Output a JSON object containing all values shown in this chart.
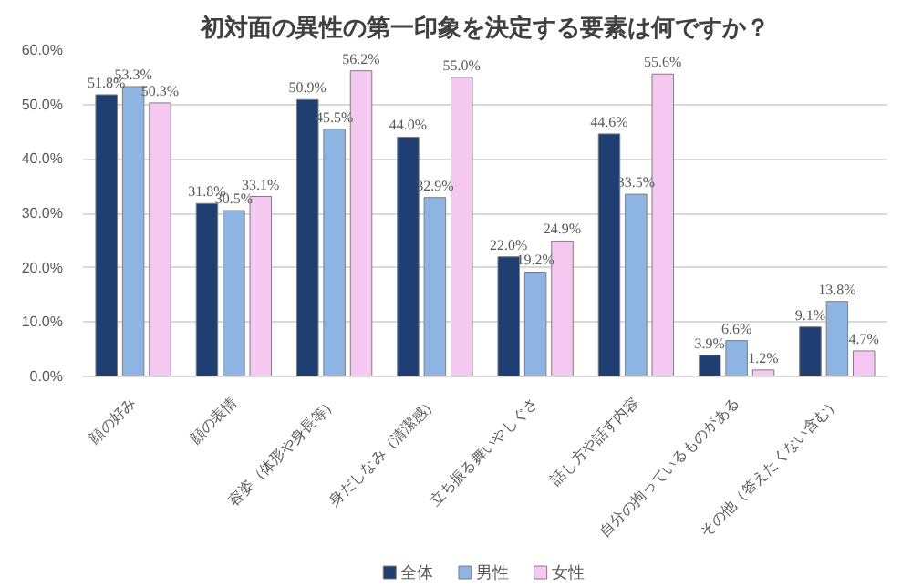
{
  "chart_data": {
    "type": "bar",
    "title": "初対面の異性の第一印象を決定する要素は何ですか？",
    "categories": [
      "顔の好み",
      "顔の表情",
      "容姿（体形や身長等）",
      "身だしなみ（清潔感）",
      "立ち振る舞いやしぐさ",
      "話し方や話す内容",
      "自分の拘っているものがある",
      "その他（答えたくない含む）"
    ],
    "series": [
      {
        "name": "全体",
        "color": "#1f3f73",
        "values": [
          51.8,
          31.8,
          50.9,
          44.0,
          22.0,
          44.6,
          3.9,
          9.1
        ],
        "value_labels": [
          "51.8%",
          "31.8%",
          "50.9%",
          "44.0%",
          "22.0%",
          "44.6%",
          "3.9%",
          "9.1%"
        ]
      },
      {
        "name": "男性",
        "color": "#8db4e2",
        "values": [
          53.3,
          30.5,
          45.5,
          32.9,
          19.2,
          33.5,
          6.6,
          13.8
        ],
        "value_labels": [
          "53.3%",
          "30.5%",
          "45.5%",
          "32.9%",
          "19.2%",
          "33.5%",
          "6.6%",
          "13.8%"
        ]
      },
      {
        "name": "女性",
        "color": "#f5c8f2",
        "values": [
          50.3,
          33.1,
          56.2,
          55.0,
          24.9,
          55.6,
          1.2,
          4.7
        ],
        "value_labels": [
          "50.3%",
          "33.1%",
          "56.2%",
          "55.0%",
          "24.9%",
          "55.6%",
          "1.2%",
          "4.7%"
        ]
      }
    ],
    "ylim": [
      0,
      60
    ],
    "yticks": [
      {
        "value": 0,
        "label": "0.0%"
      },
      {
        "value": 10,
        "label": "10.0%"
      },
      {
        "value": 20,
        "label": "20.0%"
      },
      {
        "value": 30,
        "label": "30.0%"
      },
      {
        "value": 40,
        "label": "40.0%"
      },
      {
        "value": 50,
        "label": "50.0%"
      },
      {
        "value": 60,
        "label": "60.0%"
      }
    ],
    "grid": "y",
    "legend": "bottom"
  }
}
